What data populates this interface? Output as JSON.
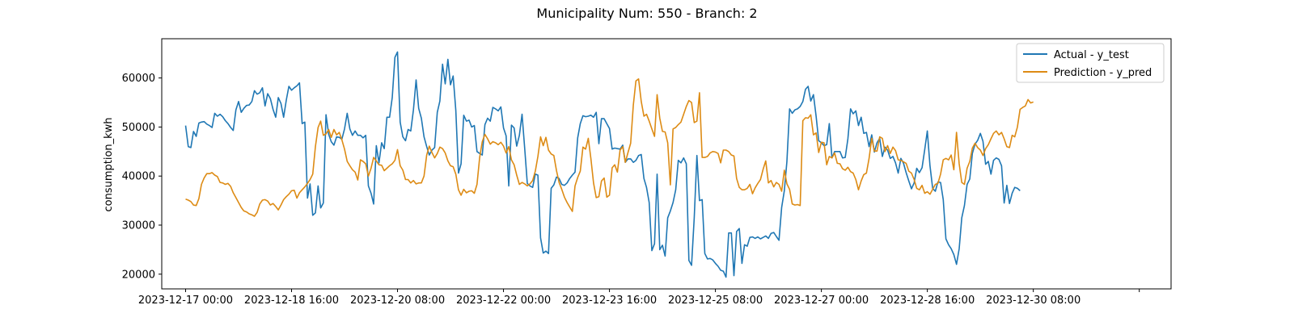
{
  "chart_data": {
    "type": "line",
    "title": "Municipality Num: 550 - Branch: 2",
    "xlabel": "",
    "ylabel": "consumption_kwh",
    "x_start": "2023-12-17 00:00",
    "x_step_hours": 1,
    "xlim_hours": [
      -9,
      372
    ],
    "ylim": [
      17000,
      68000
    ],
    "yticks": [
      20000,
      30000,
      40000,
      50000,
      60000
    ],
    "yticklabels": [
      "20000",
      "30000",
      "40000",
      "50000",
      "60000"
    ],
    "xticks_hours": [
      0,
      40,
      80,
      120,
      160,
      200,
      240,
      280,
      320,
      360
    ],
    "xticklabels": [
      "2023-12-17 00:00",
      "2023-12-18 16:00",
      "2023-12-20 08:00",
      "2023-12-22 00:00",
      "2023-12-23 16:00",
      "2023-12-25 08:00",
      "2023-12-27 00:00",
      "2023-12-28 16:00",
      "2023-12-30 08:00",
      ""
    ],
    "grid": false,
    "legend_position": "top-right",
    "series": [
      {
        "name": "Actual - y_test",
        "color": "#1f77b4",
        "values": [
          50300,
          46000,
          45800,
          49100,
          48100,
          50800,
          51000,
          51100,
          50600,
          50300,
          49900,
          52800,
          52200,
          52600,
          52100,
          51300,
          50700,
          49900,
          49300,
          53500,
          55200,
          53000,
          53800,
          54400,
          54500,
          55200,
          57400,
          56700,
          57000,
          58000,
          54300,
          56800,
          55800,
          53600,
          52000,
          56000,
          54800,
          52000,
          55500,
          58300,
          57500,
          58000,
          58400,
          59000,
          50700,
          51000,
          35500,
          38400,
          32000,
          32500,
          38000,
          33500,
          34500,
          52500,
          48500,
          47000,
          46300,
          48000,
          47900,
          47500,
          49600,
          52800,
          49600,
          48300,
          49200,
          48300,
          48300,
          47800,
          48300,
          38000,
          36500,
          34300,
          46200,
          42700,
          46800,
          45600,
          52000,
          52000,
          56000,
          64200,
          65300,
          51000,
          48000,
          47200,
          49500,
          49200,
          53500,
          59600,
          53800,
          51800,
          48000,
          46000,
          44300,
          45300,
          45800,
          53000,
          55300,
          62800,
          58800,
          63800,
          58600,
          60400,
          53400,
          40600,
          42500,
          52400,
          51200,
          51400,
          50000,
          50300,
          45000,
          44600,
          44300,
          50500,
          51800,
          51200,
          54000,
          53700,
          53300,
          54100,
          49800,
          48200,
          38000,
          50400,
          49800,
          46100,
          48300,
          52600,
          45600,
          38500,
          38000,
          37700,
          40400,
          40200,
          27400,
          24300,
          24700,
          24200,
          37500,
          38200,
          39800,
          39500,
          38300,
          38100,
          38600,
          39500,
          40200,
          40800,
          47800,
          50700,
          52300,
          52100,
          52200,
          52400,
          52000,
          53000,
          46600,
          51700,
          51700,
          50700,
          49700,
          45500,
          45700,
          45600,
          45500,
          46300,
          42800,
          43500,
          43500,
          42800,
          43200,
          44200,
          44400,
          39500,
          37700,
          34600,
          24800,
          26200,
          40400,
          25000,
          25900,
          23700,
          31500,
          32900,
          34600,
          37200,
          43200,
          42700,
          43700,
          42500,
          22800,
          21800,
          31500,
          44200,
          35000,
          35200,
          24200,
          23100,
          23200,
          22900,
          22200,
          21600,
          20800,
          20600,
          19400,
          28400,
          28400,
          19700,
          28700,
          29300,
          22200,
          26000,
          25700,
          27500,
          27600,
          27300,
          27600,
          27200,
          27500,
          27800,
          27300,
          28300,
          28500,
          27700,
          26900,
          33600,
          37000,
          43000,
          53700,
          52800,
          53500,
          53700,
          54200,
          55200,
          57700,
          58300,
          55300,
          56600,
          52200,
          47200,
          46800,
          46200,
          46400,
          50700,
          43700,
          45000,
          45000,
          45000,
          43700,
          43800,
          47600,
          53700,
          52700,
          53300,
          50300,
          52000,
          48700,
          48900,
          46000,
          48400,
          44900,
          46800,
          47700,
          44000,
          45900,
          45300,
          43600,
          44000,
          42700,
          40600,
          43600,
          42600,
          40700,
          39000,
          37400,
          38600,
          41600,
          40700,
          41700,
          45400,
          49200,
          42100,
          37500,
          36900,
          38800,
          38700,
          35200,
          27200,
          26000,
          25200,
          24000,
          22000,
          25200,
          31500,
          34000,
          38300,
          39400,
          44600,
          46500,
          47300,
          48700,
          47100,
          42400,
          43000,
          40400,
          43200,
          43700,
          43400,
          42100,
          34500,
          38100,
          34400,
          36500,
          37700,
          37500,
          37000
        ]
      },
      {
        "name": "Prediction - y_pred",
        "color": "#dd8b14",
        "values": [
          35300,
          35100,
          34800,
          34100,
          34000,
          35400,
          38300,
          39600,
          40500,
          40500,
          40700,
          40200,
          39900,
          38700,
          38600,
          38300,
          38500,
          37900,
          36600,
          35600,
          34600,
          33600,
          32900,
          32700,
          32300,
          32100,
          31800,
          32600,
          34300,
          35100,
          35200,
          34900,
          34100,
          34400,
          33800,
          33100,
          34100,
          35200,
          35800,
          36300,
          37000,
          37100,
          35500,
          36600,
          37200,
          37800,
          38500,
          39300,
          40400,
          46000,
          49900,
          51200,
          48300,
          48600,
          49500,
          47900,
          49500,
          48400,
          48900,
          47400,
          45500,
          43000,
          42100,
          41300,
          40800,
          39200,
          43300,
          43000,
          42500,
          40000,
          41600,
          43800,
          43100,
          42300,
          42200,
          41100,
          41600,
          42100,
          42500,
          43200,
          45400,
          42100,
          41200,
          39300,
          39300,
          38600,
          39100,
          38400,
          38600,
          38600,
          40000,
          44300,
          46100,
          44800,
          43700,
          44600,
          45900,
          45600,
          44700,
          43100,
          42100,
          41900,
          40400,
          37200,
          36100,
          37300,
          36600,
          36900,
          37000,
          36500,
          38300,
          43800,
          47000,
          48500,
          47600,
          46500,
          47000,
          46800,
          46400,
          46900,
          46100,
          44700,
          46000,
          43300,
          42300,
          40200,
          38300,
          38700,
          38400,
          38000,
          38400,
          39100,
          41000,
          44000,
          48000,
          46200,
          47900,
          45300,
          44500,
          44200,
          41100,
          38700,
          37300,
          35700,
          34600,
          33700,
          32800,
          38000,
          39700,
          41000,
          45900,
          45500,
          47700,
          43600,
          38600,
          35600,
          35800,
          39000,
          39600,
          35700,
          36100,
          41700,
          42300,
          40800,
          45300,
          46000,
          42800,
          44800,
          46700,
          54500,
          59400,
          59800,
          55200,
          52200,
          52600,
          51200,
          49600,
          48100,
          56600,
          51800,
          49100,
          49000,
          46800,
          38200,
          49600,
          49900,
          50500,
          51000,
          52600,
          54200,
          55400,
          55000,
          50900,
          51200,
          57000,
          43800,
          43800,
          44000,
          44700,
          45000,
          44900,
          44600,
          42700,
          45300,
          45300,
          45000,
          44300,
          44100,
          39500,
          37700,
          37200,
          37200,
          37500,
          38300,
          36400,
          37600,
          38500,
          39300,
          41400,
          43100,
          38600,
          39100,
          37800,
          38700,
          38300,
          36900,
          41200,
          38400,
          37300,
          34300,
          34100,
          34200,
          34000,
          51300,
          51900,
          51800,
          52500,
          48400,
          48800,
          44800,
          46900,
          46800,
          42300,
          44000,
          43700,
          44700,
          42600,
          42500,
          41500,
          41200,
          41800,
          40900,
          40600,
          39300,
          37200,
          39000,
          40300,
          40600,
          43600,
          47700,
          45100,
          45100,
          48000,
          47700,
          45000,
          46200,
          44600,
          45900,
          45200,
          43300,
          43200,
          42900,
          42600,
          41000,
          40600,
          39300,
          37500,
          37200,
          38100,
          36500,
          36800,
          36300,
          37300,
          38300,
          38500,
          40400,
          43300,
          43600,
          43300,
          44300,
          41300,
          48900,
          42500,
          38700,
          38300,
          41600,
          43000,
          45700,
          46700,
          45800,
          45300,
          44200,
          45600,
          46400,
          47600,
          48700,
          49200,
          48400,
          48900,
          47600,
          46000,
          45800,
          48300,
          48000,
          50000,
          53600,
          54000,
          54300,
          55600,
          54900,
          55100
        ]
      }
    ]
  }
}
